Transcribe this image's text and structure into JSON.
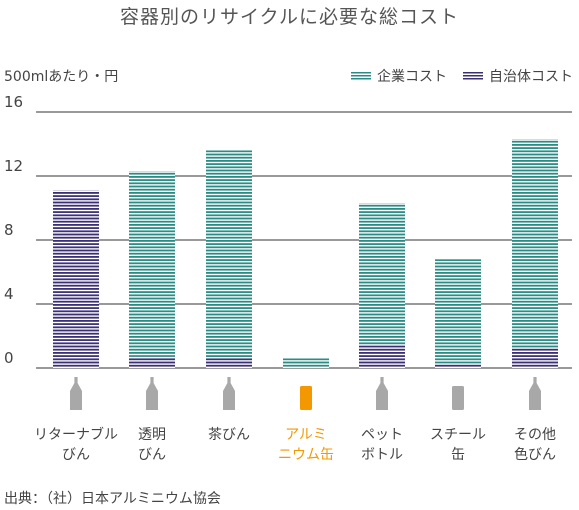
{
  "title": "容器別のリサイクルに必要な総コスト",
  "unit_label": "500mlあたり・円",
  "source": "出典：（社）日本アルミニウム協会",
  "legend": {
    "enterprise": "企業コスト",
    "municipal": "自治体コスト"
  },
  "colors": {
    "enterprise": "#2a8b84",
    "municipal": "#3b2f73",
    "highlight": "#f39800",
    "bottle_icon": "#a8a8a8",
    "grid": "#333333"
  },
  "chart_data": {
    "type": "bar",
    "stacked": true,
    "categories": [
      [
        "リターナブル",
        "びん"
      ],
      [
        "透明",
        "びん"
      ],
      [
        "茶びん"
      ],
      [
        "アルミ",
        "ニウム缶"
      ],
      [
        "ペット",
        "ボトル"
      ],
      [
        "スチール",
        "缶"
      ],
      [
        "その他",
        "色びん"
      ]
    ],
    "highlight_index": 3,
    "series": [
      {
        "name": "自治体コスト",
        "key": "municipal",
        "values": [
          11.1,
          0.7,
          0.6,
          0.0,
          1.4,
          0.3,
          1.3
        ]
      },
      {
        "name": "企業コスト",
        "key": "enterprise",
        "values": [
          0.0,
          11.6,
          13.0,
          0.6,
          8.9,
          6.5,
          13.0
        ]
      }
    ],
    "ylim": [
      0,
      16
    ],
    "yticks": [
      0,
      4,
      8,
      12,
      16
    ],
    "ylabel": "500mlあたり・円",
    "grid": true,
    "legend_position": "top-right"
  }
}
